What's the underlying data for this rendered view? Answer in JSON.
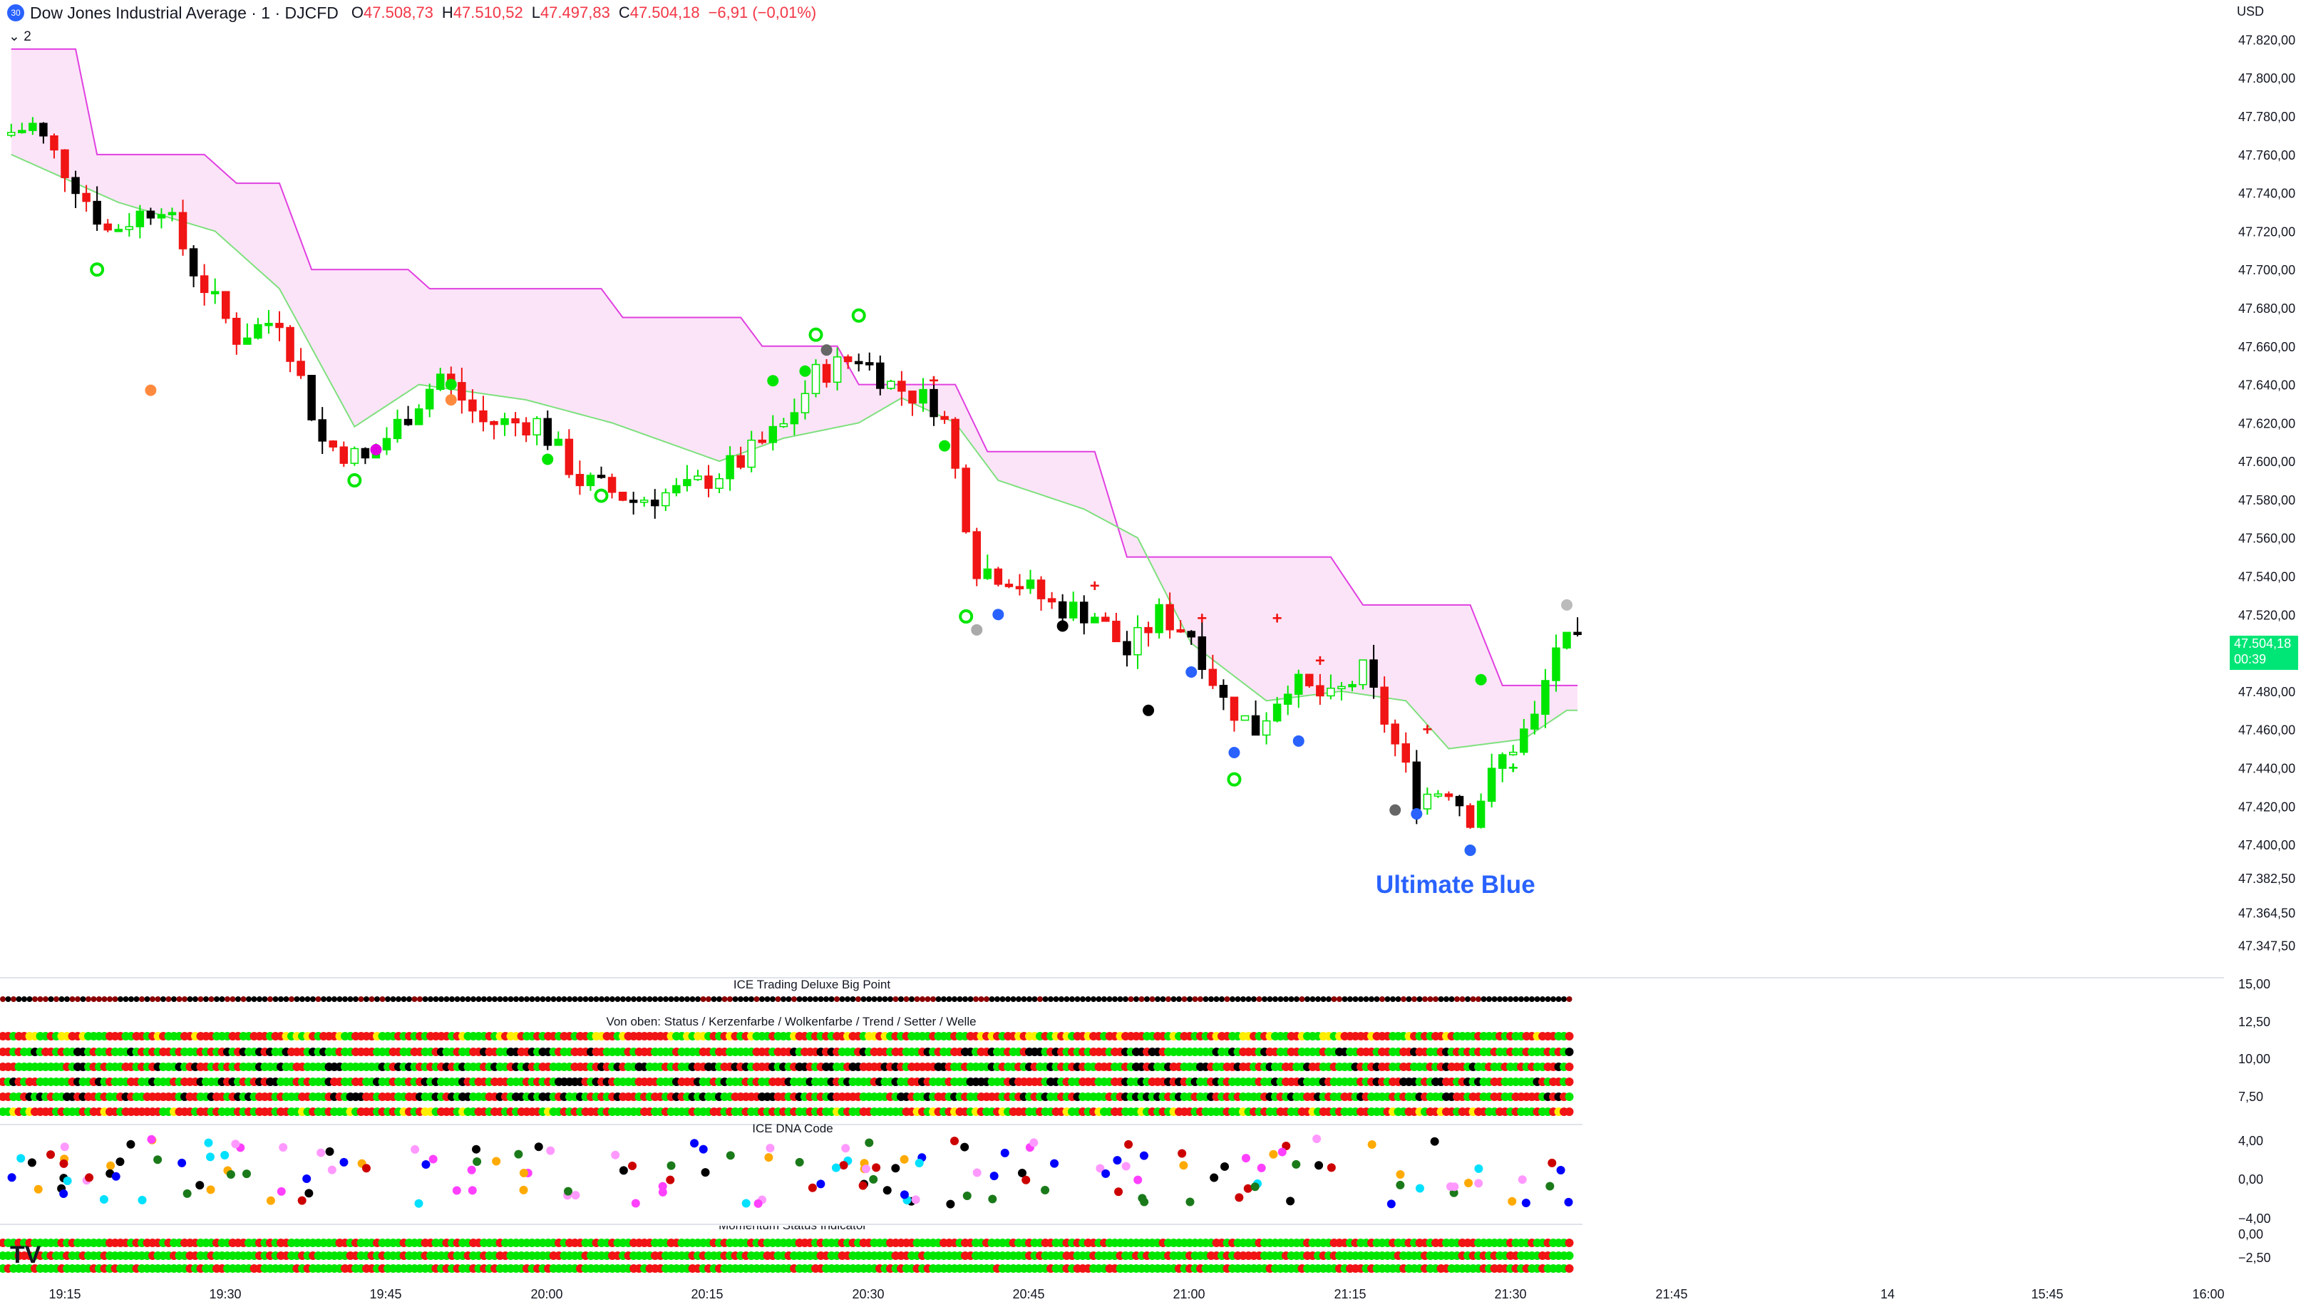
{
  "header": {
    "badge": "30",
    "title": "Dow Jones Industrial Average · 1 · DJCFD",
    "open_label": "O",
    "open": "47.508,73",
    "high_label": "H",
    "high": "47.510,52",
    "low_label": "L",
    "low": "47.497,83",
    "close_label": "C",
    "close": "47.504,18",
    "change": "−6,91 (−0,01%)"
  },
  "indicator_toggle": "2",
  "currency": "USD",
  "last_price": {
    "value": "47.504,18",
    "countdown": "00:39"
  },
  "annotation": "Ultimate Blue",
  "panes": {
    "big_point": "ICE Trading Deluxe Big Point",
    "status": "Von oben: Status / Kerzenfarbe / Wolkenfarbe / Trend / Setter / Welle",
    "dna": "ICE DNA Code",
    "momentum": "Momentum Status Indicator"
  },
  "logo": "TV",
  "colors": {
    "bull": "#00e600",
    "bear": "#f01414",
    "neutral": "#000000",
    "cloud": "#fce4f8",
    "cloud_edge": "#e040e0",
    "baseline": "#7ee07e",
    "accent": "#2962ff"
  },
  "chart_data": {
    "type": "candlestick",
    "price_axis": [
      "47.820,00",
      "47.800,00",
      "47.780,00",
      "47.760,00",
      "47.740,00",
      "47.720,00",
      "47.700,00",
      "47.680,00",
      "47.660,00",
      "47.640,00",
      "47.620,00",
      "47.600,00",
      "47.580,00",
      "47.560,00",
      "47.540,00",
      "47.520,00",
      "47.500,00",
      "47.480,00",
      "47.460,00",
      "47.440,00",
      "47.420,00",
      "47.400,00",
      "47.382,50",
      "47.364,50",
      "47.347,50"
    ],
    "ylim": [
      47345,
      47825
    ],
    "time_axis": [
      "19:15",
      "19:30",
      "19:45",
      "20:00",
      "20:15",
      "20:30",
      "20:45",
      "21:00",
      "21:15",
      "21:30",
      "21:45",
      "14",
      "15:45",
      "16:00"
    ],
    "x_start": "19:10",
    "x_end": "21:36",
    "price_waypoints": [
      {
        "t": "19:10",
        "p": 47770
      },
      {
        "t": "19:13",
        "p": 47775
      },
      {
        "t": "19:17",
        "p": 47745
      },
      {
        "t": "19:20",
        "p": 47720
      },
      {
        "t": "19:25",
        "p": 47735
      },
      {
        "t": "19:28",
        "p": 47700
      },
      {
        "t": "19:32",
        "p": 47665
      },
      {
        "t": "19:36",
        "p": 47675
      },
      {
        "t": "19:40",
        "p": 47610
      },
      {
        "t": "19:44",
        "p": 47600
      },
      {
        "t": "19:48",
        "p": 47625
      },
      {
        "t": "19:51",
        "p": 47645
      },
      {
        "t": "19:55",
        "p": 47620
      },
      {
        "t": "20:00",
        "p": 47620
      },
      {
        "t": "20:04",
        "p": 47590
      },
      {
        "t": "20:09",
        "p": 47580
      },
      {
        "t": "20:14",
        "p": 47585
      },
      {
        "t": "20:19",
        "p": 47600
      },
      {
        "t": "20:23",
        "p": 47618
      },
      {
        "t": "20:26",
        "p": 47645
      },
      {
        "t": "20:30",
        "p": 47655
      },
      {
        "t": "20:33",
        "p": 47640
      },
      {
        "t": "20:37",
        "p": 47630
      },
      {
        "t": "20:38",
        "p": 47620
      },
      {
        "t": "20:41",
        "p": 47545
      },
      {
        "t": "20:44",
        "p": 47540
      },
      {
        "t": "20:48",
        "p": 47525
      },
      {
        "t": "20:52",
        "p": 47520
      },
      {
        "t": "20:55",
        "p": 47500
      },
      {
        "t": "20:58",
        "p": 47520
      },
      {
        "t": "21:01",
        "p": 47510
      },
      {
        "t": "21:04",
        "p": 47475
      },
      {
        "t": "21:07",
        "p": 47460
      },
      {
        "t": "21:10",
        "p": 47485
      },
      {
        "t": "21:14",
        "p": 47475
      },
      {
        "t": "21:17",
        "p": 47490
      },
      {
        "t": "21:19",
        "p": 47465
      },
      {
        "t": "21:22",
        "p": 47425
      },
      {
        "t": "21:25",
        "p": 47430
      },
      {
        "t": "21:27",
        "p": 47415
      },
      {
        "t": "21:30",
        "p": 47445
      },
      {
        "t": "21:33",
        "p": 47465
      },
      {
        "t": "21:35",
        "p": 47504
      }
    ],
    "cloud_upper": [
      {
        "t": "19:10",
        "p": 47815
      },
      {
        "t": "19:16",
        "p": 47815
      },
      {
        "t": "19:18",
        "p": 47760
      },
      {
        "t": "19:28",
        "p": 47760
      },
      {
        "t": "19:31",
        "p": 47745
      },
      {
        "t": "19:35",
        "p": 47745
      },
      {
        "t": "19:38",
        "p": 47700
      },
      {
        "t": "19:47",
        "p": 47700
      },
      {
        "t": "19:49",
        "p": 47690
      },
      {
        "t": "20:05",
        "p": 47690
      },
      {
        "t": "20:07",
        "p": 47675
      },
      {
        "t": "20:18",
        "p": 47675
      },
      {
        "t": "20:20",
        "p": 47660
      },
      {
        "t": "20:27",
        "p": 47660
      },
      {
        "t": "20:29",
        "p": 47640
      },
      {
        "t": "20:38",
        "p": 47640
      },
      {
        "t": "20:41",
        "p": 47605
      },
      {
        "t": "20:51",
        "p": 47605
      },
      {
        "t": "20:54",
        "p": 47550
      },
      {
        "t": "21:13",
        "p": 47550
      },
      {
        "t": "21:16",
        "p": 47525
      },
      {
        "t": "21:26",
        "p": 47525
      },
      {
        "t": "21:29",
        "p": 47483
      },
      {
        "t": "21:35",
        "p": 47483
      }
    ],
    "baseline": [
      {
        "t": "19:10",
        "p": 47760
      },
      {
        "t": "19:20",
        "p": 47735
      },
      {
        "t": "19:29",
        "p": 47720
      },
      {
        "t": "19:35",
        "p": 47690
      },
      {
        "t": "19:42",
        "p": 47618
      },
      {
        "t": "19:48",
        "p": 47640
      },
      {
        "t": "19:58",
        "p": 47632
      },
      {
        "t": "20:06",
        "p": 47620
      },
      {
        "t": "20:16",
        "p": 47600
      },
      {
        "t": "20:22",
        "p": 47612
      },
      {
        "t": "20:29",
        "p": 47620
      },
      {
        "t": "20:33",
        "p": 47633
      },
      {
        "t": "20:38",
        "p": 47620
      },
      {
        "t": "20:42",
        "p": 47590
      },
      {
        "t": "20:50",
        "p": 47575
      },
      {
        "t": "20:55",
        "p": 47560
      },
      {
        "t": "21:00",
        "p": 47505
      },
      {
        "t": "21:07",
        "p": 47475
      },
      {
        "t": "21:14",
        "p": 47480
      },
      {
        "t": "21:20",
        "p": 47475
      },
      {
        "t": "21:24",
        "p": 47450
      },
      {
        "t": "21:31",
        "p": 47455
      },
      {
        "t": "21:35",
        "p": 47470
      }
    ],
    "panes": [
      {
        "title": "ICE Trading Deluxe Big Point",
        "rows": 1,
        "axis": [
          "15,00"
        ]
      },
      {
        "title": "Von oben: Status / Kerzenfarbe / Wolkenfarbe / Trend / Setter / Welle",
        "rows": 6,
        "axis": [
          "12,50",
          "10,00",
          "7,50"
        ]
      },
      {
        "title": "ICE DNA Code",
        "axis": [
          "4,00",
          "0,00",
          "−4,00"
        ]
      },
      {
        "title": "Momentum Status Indicator",
        "rows": 3,
        "axis": [
          "0,00",
          "−2,50"
        ]
      }
    ]
  }
}
